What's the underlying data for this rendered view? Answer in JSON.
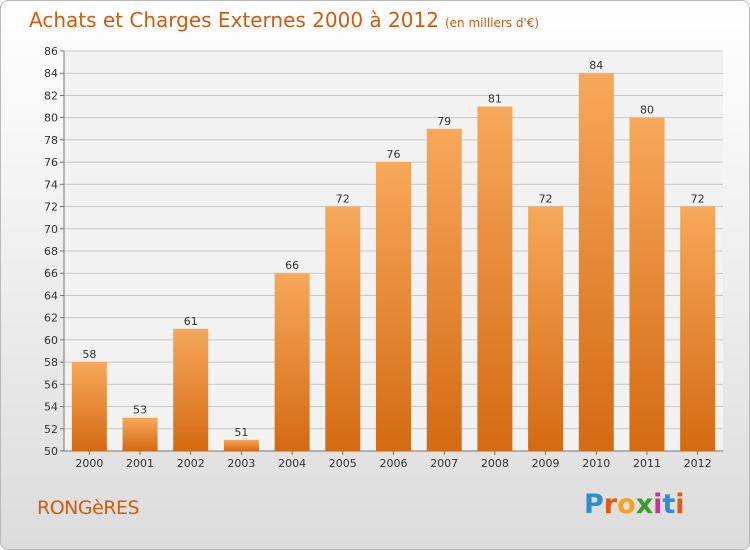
{
  "title": "Achats et Charges Externes 2000 à 2012",
  "subtitle": "(en milliers d'€)",
  "commune": "RONGèRES",
  "brand": {
    "letters": [
      "P",
      "r",
      "o",
      "x",
      "i",
      "t",
      "i"
    ],
    "colors": [
      "#2b8fd0",
      "#e05a12",
      "#f2a21b",
      "#3a9a2f",
      "#c8339b",
      "#2b8fd0",
      "#e05a12"
    ]
  },
  "colors": {
    "bar_light": "#f7a85a",
    "bar_dark": "#d46a12",
    "title": "#d25b0d",
    "grid": "#c8c8c8"
  },
  "chart_data": {
    "type": "bar",
    "categories": [
      "2000",
      "2001",
      "2002",
      "2003",
      "2004",
      "2005",
      "2006",
      "2007",
      "2008",
      "2009",
      "2010",
      "2011",
      "2012"
    ],
    "values": [
      58,
      53,
      61,
      51,
      66,
      72,
      76,
      79,
      81,
      72,
      84,
      80,
      72
    ],
    "ylim": [
      50,
      86
    ],
    "yticks": [
      50,
      52,
      54,
      56,
      58,
      60,
      62,
      64,
      66,
      68,
      70,
      72,
      74,
      76,
      78,
      80,
      82,
      84,
      86
    ],
    "grid": true
  }
}
